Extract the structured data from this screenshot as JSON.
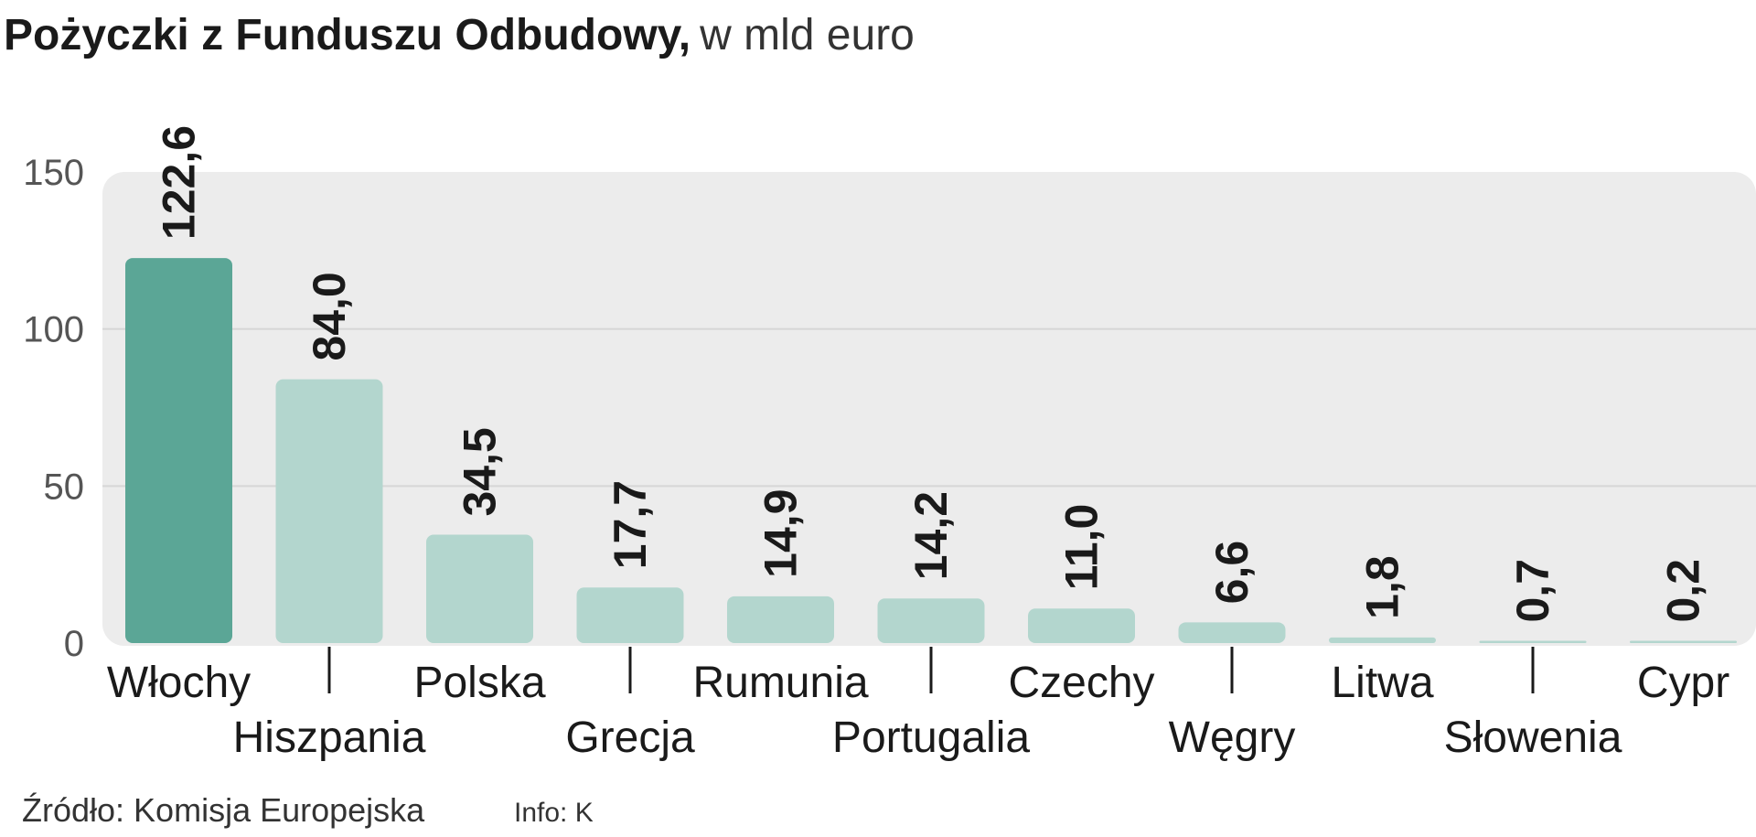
{
  "title": "Pożyczki z Funduszu Odbudowy,",
  "subtitle": "w mld euro",
  "source": "Źródło: Komisja Europejska",
  "credit": "Info: K",
  "colors": {
    "highlight": "#5ba696",
    "bar": "#b3d6ce",
    "plot_bg": "#ececec",
    "grid": "#d6d6d6",
    "text": "#1a1a1a",
    "axis_text": "#555555"
  },
  "chart_data": {
    "type": "bar",
    "categories": [
      "Włochy",
      "Hiszpania",
      "Polska",
      "Grecja",
      "Rumunia",
      "Portugalia",
      "Czechy",
      "Węgry",
      "Litwa",
      "Słowenia",
      "Cypr"
    ],
    "values": [
      122.6,
      84.0,
      34.5,
      17.7,
      14.9,
      14.2,
      11.0,
      6.6,
      1.8,
      0.7,
      0.2
    ],
    "value_labels": [
      "122,6",
      "84,0",
      "34,5",
      "17,7",
      "14,9",
      "14,2",
      "11,0",
      "6,6",
      "1,8",
      "0,7",
      "0,2"
    ],
    "highlighted": [
      "Włochy"
    ],
    "ylim": [
      0,
      150
    ],
    "yticks": [
      0,
      50,
      100,
      150
    ],
    "grid": true,
    "xlabel": "",
    "ylabel": ""
  }
}
